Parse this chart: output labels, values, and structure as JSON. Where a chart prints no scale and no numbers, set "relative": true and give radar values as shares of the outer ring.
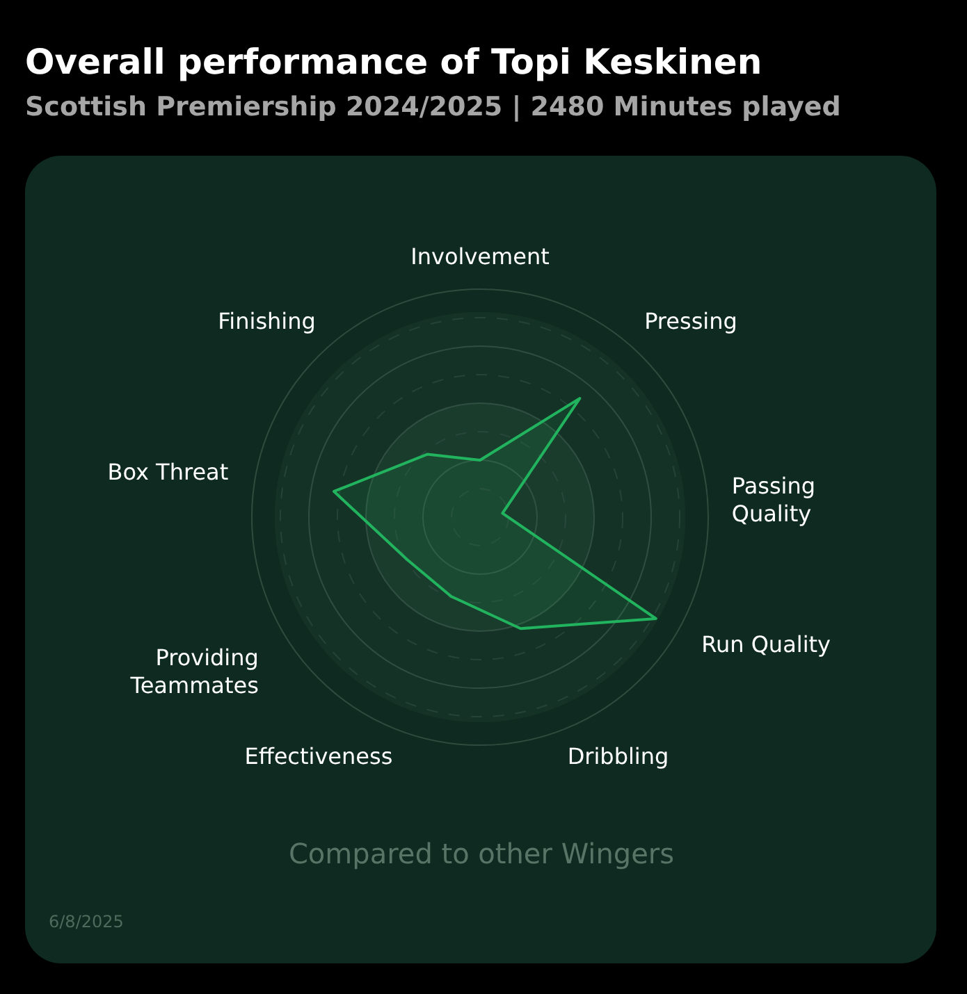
{
  "chart_data": {
    "type": "radar",
    "title": "Overall performance of Topi Keskinen",
    "subtitle": "Scottish Premiership 2024/2025 | 2480 Minutes played",
    "categories": [
      "Involvement",
      "Pressing",
      "Passing Quality",
      "Run Quality",
      "Dribbling",
      "Effectiveness",
      "Providing Teammates",
      "Box Threat",
      "Finishing"
    ],
    "relative": true,
    "grid": true,
    "marker": "none",
    "line_style": "solid",
    "series": [
      {
        "color": "#22b35e",
        "values": [
          0.25,
          0.68,
          0.1,
          0.89,
          0.52,
          0.37,
          0.37,
          0.65,
          0.36
        ]
      }
    ],
    "annotations": [
      "Compared to other Wingers",
      "6/8/2025"
    ]
  }
}
